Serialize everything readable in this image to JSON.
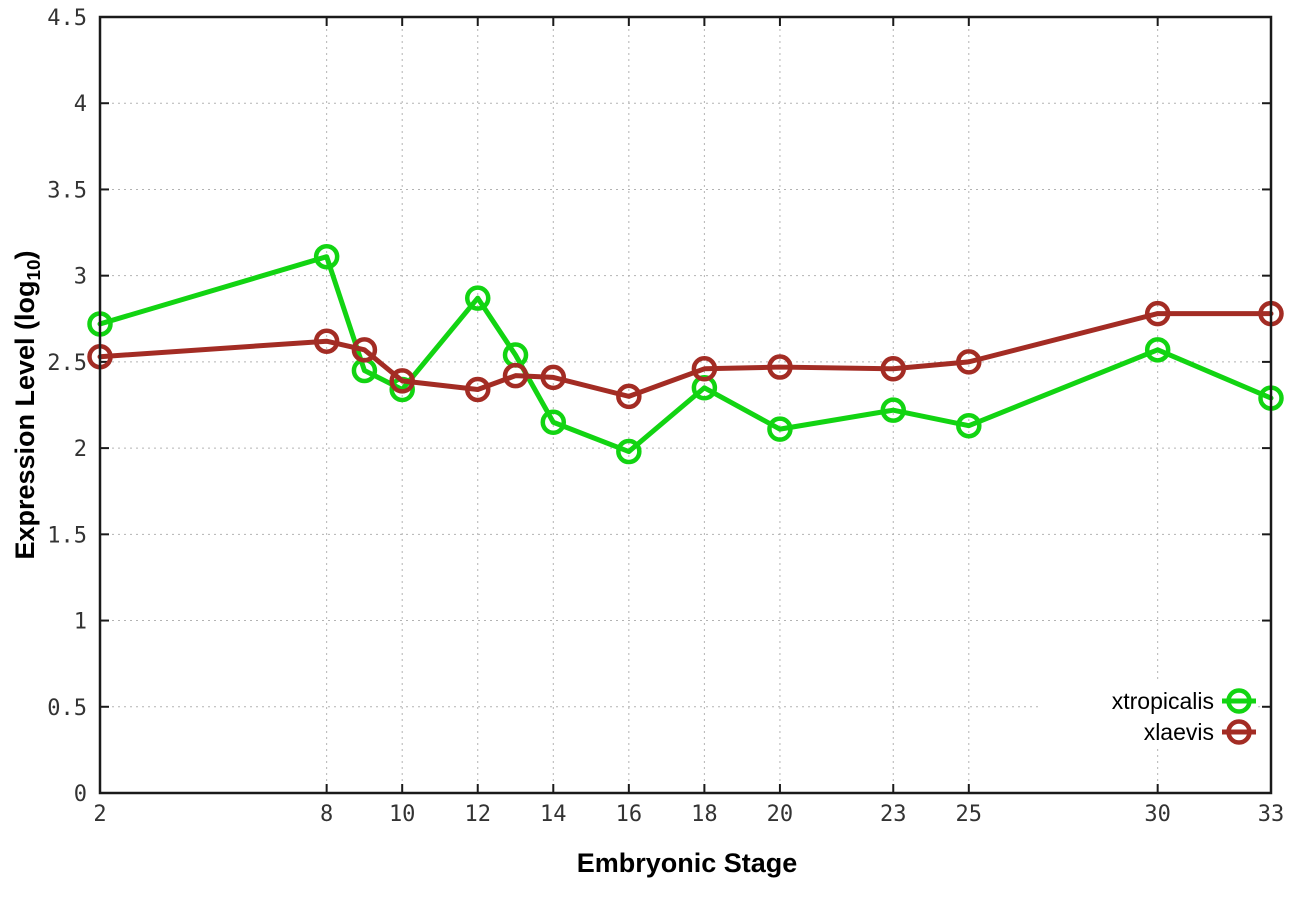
{
  "chart_data": {
    "type": "line",
    "title": "",
    "xlabel": "Embryonic Stage",
    "ylabel": "Expression Level (log10)",
    "ylabel_parts": {
      "base": "Expression Level (log",
      "sub": "10",
      "close": ")"
    },
    "x": [
      2,
      8,
      9,
      10,
      12,
      13,
      14,
      16,
      18,
      20,
      23,
      25,
      30,
      33
    ],
    "series": [
      {
        "name": "xtropicalis",
        "color": "#12d412",
        "marker": "open-circle",
        "values": [
          2.72,
          3.11,
          2.45,
          2.34,
          2.87,
          2.54,
          2.15,
          1.98,
          2.35,
          2.11,
          2.22,
          2.13,
          2.57,
          2.29
        ]
      },
      {
        "name": "xlaevis",
        "color": "#a32c24",
        "marker": "open-circle",
        "values": [
          2.53,
          2.62,
          2.57,
          2.39,
          2.34,
          2.42,
          2.41,
          2.3,
          2.46,
          2.47,
          2.46,
          2.5,
          2.78,
          2.78
        ]
      }
    ],
    "xlim": [
      2,
      33
    ],
    "ylim": [
      0,
      4.5
    ],
    "x_ticks": [
      2,
      8,
      10,
      12,
      14,
      16,
      18,
      20,
      23,
      25,
      30,
      33
    ],
    "y_ticks": [
      0,
      0.5,
      1,
      1.5,
      2,
      2.5,
      3,
      3.5,
      4,
      4.5
    ],
    "y_tick_labels": [
      "0",
      "0.5",
      "1",
      "1.5",
      "2",
      "2.5",
      "3",
      "3.5",
      "4",
      "4.5"
    ],
    "grid": true,
    "legend_position": "bottom-right",
    "legend_entries": [
      "xtropicalis",
      "xlaevis"
    ]
  },
  "style": {
    "background": "#ffffff",
    "axis_color": "#1a1a1a",
    "grid_color": "#b3b3b3",
    "tick_label_color": "#333333",
    "legend_text_color": "#000000"
  }
}
